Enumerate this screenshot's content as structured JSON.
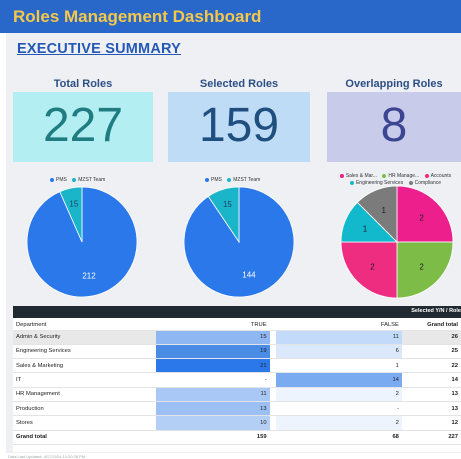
{
  "header": {
    "title": "Roles Management Dashboard"
  },
  "summary": {
    "heading": "EXECUTIVE SUMMARY"
  },
  "kpis": [
    {
      "label": "Total Roles",
      "value": "227",
      "bg": "#b3eef2",
      "color": "#1f7c80"
    },
    {
      "label": "Selected Roles",
      "value": "159",
      "bg": "#bfdcf6",
      "color": "#1f4f7e"
    },
    {
      "label": "Overlapping Roles",
      "value": "8",
      "bg": "#c9cbea",
      "color": "#3c4592"
    }
  ],
  "chart_data": [
    {
      "type": "pie",
      "legend": [
        "PMS",
        "MZST Team"
      ],
      "values": [
        212,
        15
      ],
      "labels": [
        "212",
        "15"
      ],
      "colors": [
        "#2b78ea",
        "#1bb5c9"
      ]
    },
    {
      "type": "pie",
      "legend": [
        "PMS",
        "MZST Team"
      ],
      "values": [
        144,
        15
      ],
      "labels": [
        "144",
        "15"
      ],
      "colors": [
        "#2b78ea",
        "#1bb5c9"
      ]
    },
    {
      "type": "pie",
      "legend": [
        "Sales & Mar...",
        "HR Manage...",
        "Accounts",
        "Engineering Services",
        "Compliance"
      ],
      "values": [
        2,
        2,
        2,
        1,
        1
      ],
      "labels": [
        "2",
        "2",
        "2",
        "1",
        "1"
      ],
      "colors": [
        "#ec1f8c",
        "#7ebc48",
        "#ee2c80",
        "#12b9cc",
        "#7b7b7b"
      ]
    }
  ],
  "table": {
    "bar_title": "Selected Y/N / Role",
    "headers": {
      "dept": "Department",
      "true": "TRUE",
      "false": "FALSE",
      "grand": "Grand total"
    },
    "rows": [
      {
        "dept": "Admin & Security",
        "t": "15",
        "f": "11",
        "g": "26",
        "tbg": "#8fb8f3",
        "fbg": "#c4dafa"
      },
      {
        "dept": "Engineering Services",
        "t": "19",
        "f": "6",
        "g": "25",
        "tbg": "#4a8be6",
        "fbg": "#dbe8fb"
      },
      {
        "dept": "Sales & Marketing",
        "t": "21",
        "f": "1",
        "g": "22",
        "tbg": "#2b78ea",
        "fbg": "#ffffff"
      },
      {
        "dept": "IT",
        "t": "-",
        "f": "14",
        "g": "14",
        "tbg": "#ffffff",
        "fbg": "#7aabf0"
      },
      {
        "dept": "HR Management",
        "t": "11",
        "f": "2",
        "g": "13",
        "tbg": "#a9c8f5",
        "fbg": "#eef4fd"
      },
      {
        "dept": "Production",
        "t": "13",
        "f": "-",
        "g": "13",
        "tbg": "#9cc0f4",
        "fbg": "#ffffff"
      },
      {
        "dept": "Stores",
        "t": "10",
        "f": "2",
        "g": "12",
        "tbg": "#b4cff6",
        "fbg": "#eef4fd"
      }
    ],
    "total": {
      "dept": "Grand total",
      "t": "159",
      "f": "68",
      "g": "227"
    }
  },
  "footer": {
    "text": "Data Last Updated: 4/17/2024 10:20:28 PM"
  }
}
